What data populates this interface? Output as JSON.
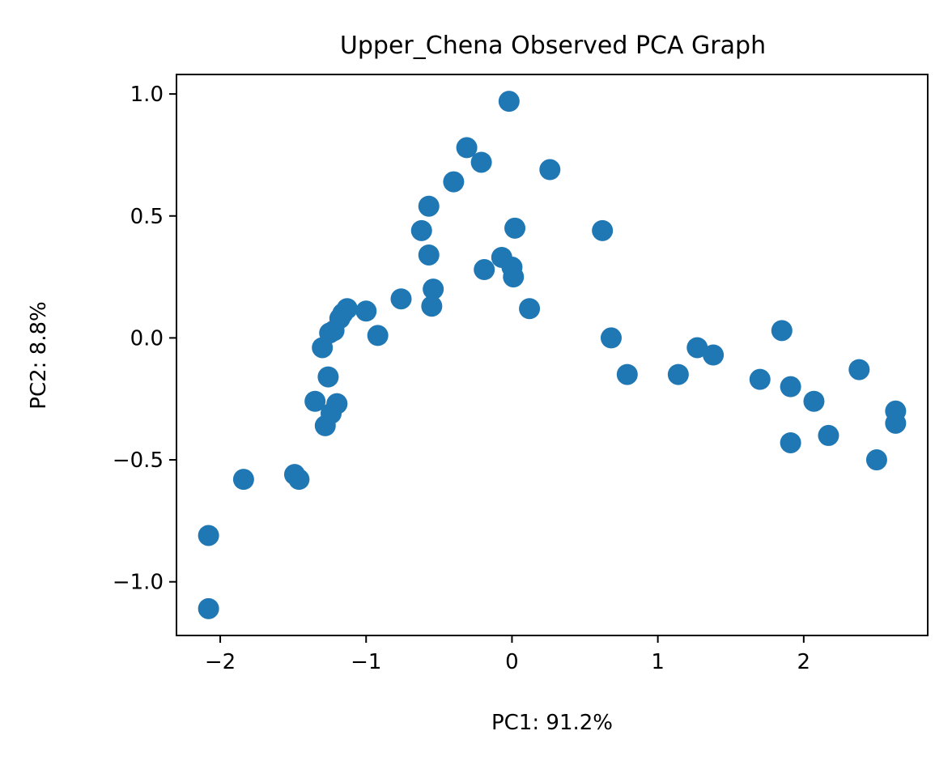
{
  "chart_data": {
    "type": "scatter",
    "title": "Upper_Chena Observed PCA Graph",
    "xlabel": "PC1: 91.2%",
    "ylabel": "PC2: 8.8%",
    "xlim": [
      -2.3,
      2.85
    ],
    "ylim": [
      -1.22,
      1.08
    ],
    "x_ticks": [
      -2,
      -1,
      0,
      1,
      2
    ],
    "x_tick_labels": [
      "−2",
      "−1",
      "0",
      "1",
      "2"
    ],
    "y_ticks": [
      -1.0,
      -0.5,
      0.0,
      0.5,
      1.0
    ],
    "y_tick_labels": [
      "−1.0",
      "−0.5",
      "0.0",
      "0.5",
      "1.0"
    ],
    "grid": false,
    "marker_color": "#1f77b4",
    "series": [
      {
        "x": [
          -2.08,
          -2.08,
          -1.84,
          -1.49,
          -1.46,
          -1.35,
          -1.28,
          -1.24,
          -1.2,
          -1.2,
          -1.3,
          -1.26,
          -1.25,
          -1.22,
          -1.18,
          -1.16,
          -1.13,
          -1.0,
          -0.92,
          -0.76,
          -0.55,
          -0.54,
          -0.62,
          -0.57,
          -0.57,
          -0.4,
          -0.31,
          -0.21,
          -0.19,
          -0.07,
          0.0,
          0.01,
          0.02,
          0.12,
          -0.02,
          0.26,
          0.62,
          0.68,
          0.79,
          1.14,
          1.27,
          1.38,
          1.7,
          1.85,
          1.91,
          1.91,
          2.07,
          2.17,
          2.38,
          2.5,
          2.63,
          2.63
        ],
        "y": [
          -1.11,
          -0.81,
          -0.58,
          -0.56,
          -0.58,
          -0.26,
          -0.36,
          -0.31,
          -0.27,
          -0.27,
          -0.04,
          -0.16,
          0.02,
          0.03,
          0.08,
          0.1,
          0.12,
          0.11,
          0.01,
          0.16,
          0.13,
          0.2,
          0.44,
          0.34,
          0.54,
          0.64,
          0.78,
          0.72,
          0.28,
          0.33,
          0.29,
          0.25,
          0.45,
          0.12,
          0.97,
          0.69,
          0.44,
          0.0,
          -0.15,
          -0.15,
          -0.04,
          -0.07,
          -0.17,
          0.03,
          -0.2,
          -0.43,
          -0.26,
          -0.4,
          -0.13,
          -0.5,
          -0.3,
          -0.35
        ]
      }
    ]
  }
}
